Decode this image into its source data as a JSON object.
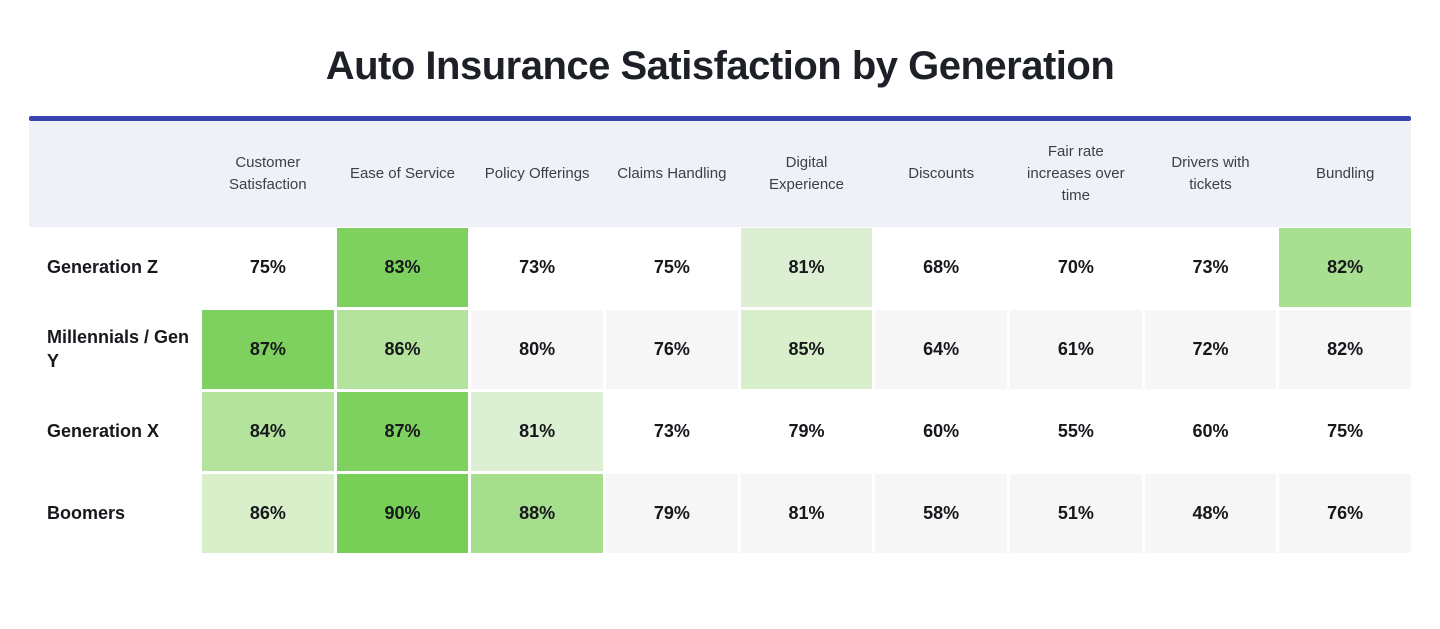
{
  "title": "Auto Insurance Satisfaction by Generation",
  "colors": {
    "accent_rule": "#3a44ae",
    "header_bg": "#eef2f7",
    "stripe_bg": "#f6f6f7",
    "title_text": "#1d2026",
    "header_text": "#3b4149",
    "cell_text": "#16181c"
  },
  "chart_data": {
    "type": "heatmap",
    "title": "Auto Insurance Satisfaction by Generation",
    "unit": "%",
    "columns": [
      "Customer Satisfaction",
      "Ease of Service",
      "Policy Offerings",
      "Claims Handling",
      "Digital Experience",
      "Discounts",
      "Fair rate increases over time",
      "Drivers with tickets",
      "Bundling"
    ],
    "rows": [
      "Generation Z",
      "Millennials / Gen Y",
      "Generation X",
      "Boomers"
    ],
    "values": [
      [
        75,
        83,
        73,
        75,
        81,
        68,
        70,
        73,
        82
      ],
      [
        87,
        86,
        80,
        76,
        85,
        64,
        61,
        72,
        82
      ],
      [
        84,
        87,
        81,
        73,
        79,
        60,
        55,
        60,
        75
      ],
      [
        86,
        90,
        88,
        79,
        81,
        58,
        51,
        48,
        76
      ]
    ],
    "cell_colors": [
      [
        null,
        "#7ed05f",
        null,
        null,
        "#dcefd2",
        null,
        null,
        null,
        "#a8df90"
      ],
      [
        "#7ed05f",
        "#b3e39d",
        null,
        null,
        "#d9eecb",
        null,
        null,
        null,
        null
      ],
      [
        "#b3e39d",
        "#7ed05f",
        "#dcefd2",
        null,
        null,
        null,
        null,
        null,
        null
      ],
      [
        "#d9efc9",
        "#78cf58",
        "#a5de8c",
        null,
        null,
        null,
        null,
        null,
        null
      ]
    ],
    "striped_row_indexes": [
      1,
      3
    ],
    "legend": null,
    "grid": false
  }
}
